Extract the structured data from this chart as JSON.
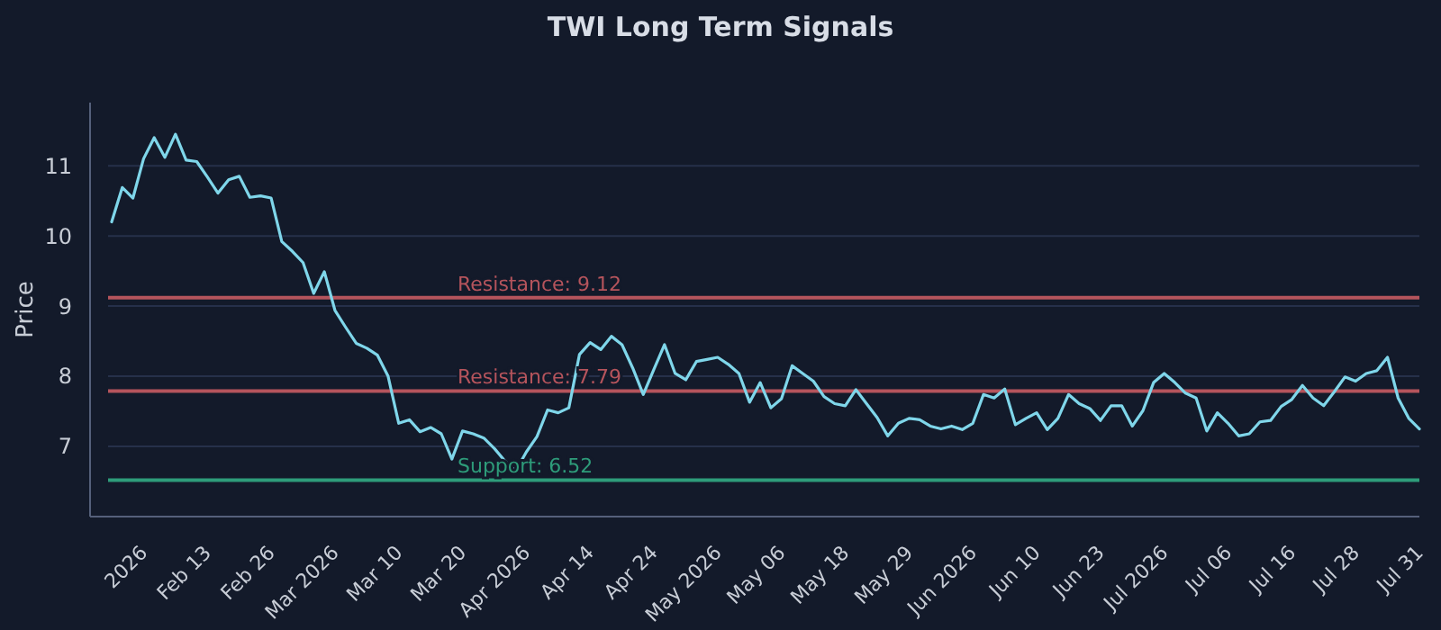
{
  "chart_data": {
    "type": "line",
    "title": "TWI Long Term Signals",
    "ylabel": "Price",
    "categories": [
      null,
      null,
      null,
      "2026",
      null,
      null,
      null,
      null,
      null,
      "Feb 13",
      null,
      null,
      null,
      null,
      null,
      "Feb 26",
      null,
      null,
      null,
      null,
      null,
      "Mar 2026",
      null,
      null,
      null,
      null,
      null,
      "Mar 10",
      null,
      null,
      null,
      null,
      null,
      "Mar 20",
      null,
      null,
      null,
      null,
      null,
      "Apr 2026",
      null,
      null,
      null,
      null,
      null,
      "Apr 14",
      null,
      null,
      null,
      null,
      null,
      "Apr 24",
      null,
      null,
      null,
      null,
      null,
      "May 2026",
      null,
      null,
      null,
      null,
      null,
      "May 06",
      null,
      null,
      null,
      null,
      null,
      "May 18",
      null,
      null,
      null,
      null,
      null,
      "May 29",
      null,
      null,
      null,
      null,
      null,
      "Jun 2026",
      null,
      null,
      null,
      null,
      null,
      "Jun 10",
      null,
      null,
      null,
      null,
      null,
      "Jun 23",
      null,
      null,
      null,
      null,
      null,
      "Jul 2026",
      null,
      null,
      null,
      null,
      null,
      "Jul 06",
      null,
      null,
      null,
      null,
      null,
      "Jul 16",
      null,
      null,
      null,
      null,
      null,
      "Jul 28",
      null,
      null,
      null,
      null,
      null,
      "Jul 31"
    ],
    "series": [
      {
        "color": "#7fd6ea",
        "values": [
          10.2,
          10.69,
          10.54,
          11.1,
          11.4,
          11.12,
          11.45,
          11.08,
          11.06,
          10.84,
          10.61,
          10.8,
          10.85,
          10.55,
          10.57,
          10.54,
          9.92,
          9.78,
          9.62,
          9.18,
          9.49,
          8.94,
          8.7,
          8.47,
          8.4,
          8.3,
          8.0,
          7.33,
          7.38,
          7.21,
          7.27,
          7.18,
          6.82,
          7.22,
          7.18,
          7.12,
          6.97,
          6.79,
          6.65,
          6.92,
          7.14,
          7.52,
          7.48,
          7.55,
          8.31,
          8.48,
          8.38,
          8.57,
          8.45,
          8.12,
          7.74,
          8.1,
          8.45,
          8.04,
          7.95,
          8.21,
          8.24,
          8.27,
          8.17,
          8.04,
          7.63,
          7.91,
          7.55,
          7.68,
          8.15,
          8.04,
          7.93,
          7.71,
          7.61,
          7.58,
          7.81,
          7.61,
          7.41,
          7.15,
          7.33,
          7.4,
          7.38,
          7.29,
          7.25,
          7.29,
          7.24,
          7.33,
          7.74,
          7.69,
          7.82,
          7.31,
          7.4,
          7.48,
          7.24,
          7.4,
          7.74,
          7.61,
          7.54,
          7.37,
          7.58,
          7.58,
          7.29,
          7.51,
          7.91,
          8.04,
          7.91,
          7.76,
          7.69,
          7.22,
          7.48,
          7.33,
          7.15,
          7.18,
          7.35,
          7.37,
          7.57,
          7.67,
          7.87,
          7.69,
          7.58,
          7.78,
          7.99,
          7.93,
          8.04,
          8.08,
          8.27,
          7.69,
          7.4,
          7.25
        ]
      }
    ],
    "ylim": [
      6.0,
      11.9
    ],
    "yticks": [
      7,
      8,
      9,
      10,
      11
    ],
    "grid": "y",
    "ref_lines": [
      {
        "axis": "y",
        "value": 9.12,
        "label": "Resistance: 9.12",
        "color": "#b5545c"
      },
      {
        "axis": "y",
        "value": 7.79,
        "label": "Resistance: 7.79",
        "color": "#b5545c"
      },
      {
        "axis": "y",
        "value": 6.52,
        "label": "Support: 6.52",
        "color": "#2e9c7a"
      }
    ]
  }
}
